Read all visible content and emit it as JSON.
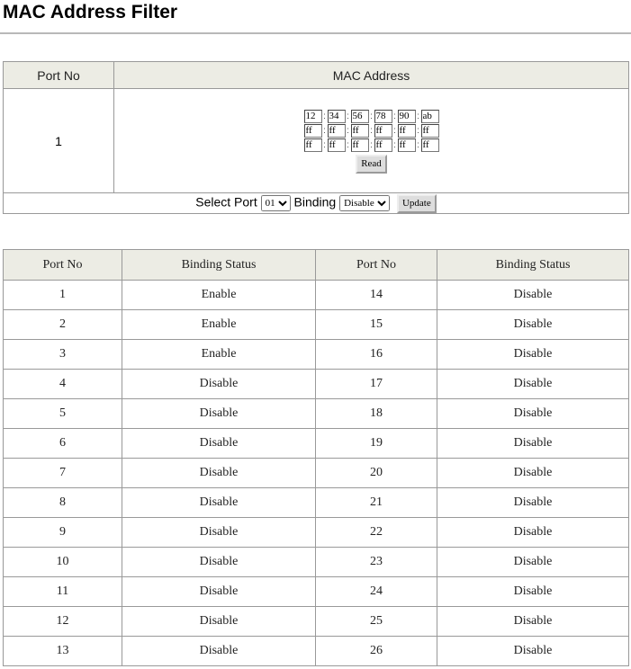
{
  "title": "MAC Address Filter",
  "mac_table": {
    "col_port": "Port No",
    "col_mac": "MAC Address",
    "port": "1",
    "mac_rows": [
      [
        "12",
        "34",
        "56",
        "78",
        "90",
        "ab"
      ],
      [
        "ff",
        "ff",
        "ff",
        "ff",
        "ff",
        "ff"
      ],
      [
        "ff",
        "ff",
        "ff",
        "ff",
        "ff",
        "ff"
      ]
    ],
    "separator": ":",
    "read_label": "Read"
  },
  "controls": {
    "select_port_label": "Select Port",
    "port_value": "01",
    "binding_label": "Binding",
    "binding_value": "Disable",
    "update_label": "Update"
  },
  "status_table": {
    "headers": [
      "Port  No",
      "Binding Status",
      "Port  No",
      "Binding Status"
    ],
    "rows": [
      [
        "1",
        "Enable",
        "14",
        "Disable"
      ],
      [
        "2",
        "Enable",
        "15",
        "Disable"
      ],
      [
        "3",
        "Enable",
        "16",
        "Disable"
      ],
      [
        "4",
        "Disable",
        "17",
        "Disable"
      ],
      [
        "5",
        "Disable",
        "18",
        "Disable"
      ],
      [
        "6",
        "Disable",
        "19",
        "Disable"
      ],
      [
        "7",
        "Disable",
        "20",
        "Disable"
      ],
      [
        "8",
        "Disable",
        "21",
        "Disable"
      ],
      [
        "9",
        "Disable",
        "22",
        "Disable"
      ],
      [
        "10",
        "Disable",
        "23",
        "Disable"
      ],
      [
        "11",
        "Disable",
        "24",
        "Disable"
      ],
      [
        "12",
        "Disable",
        "25",
        "Disable"
      ],
      [
        "13",
        "Disable",
        "26",
        "Disable"
      ]
    ]
  }
}
